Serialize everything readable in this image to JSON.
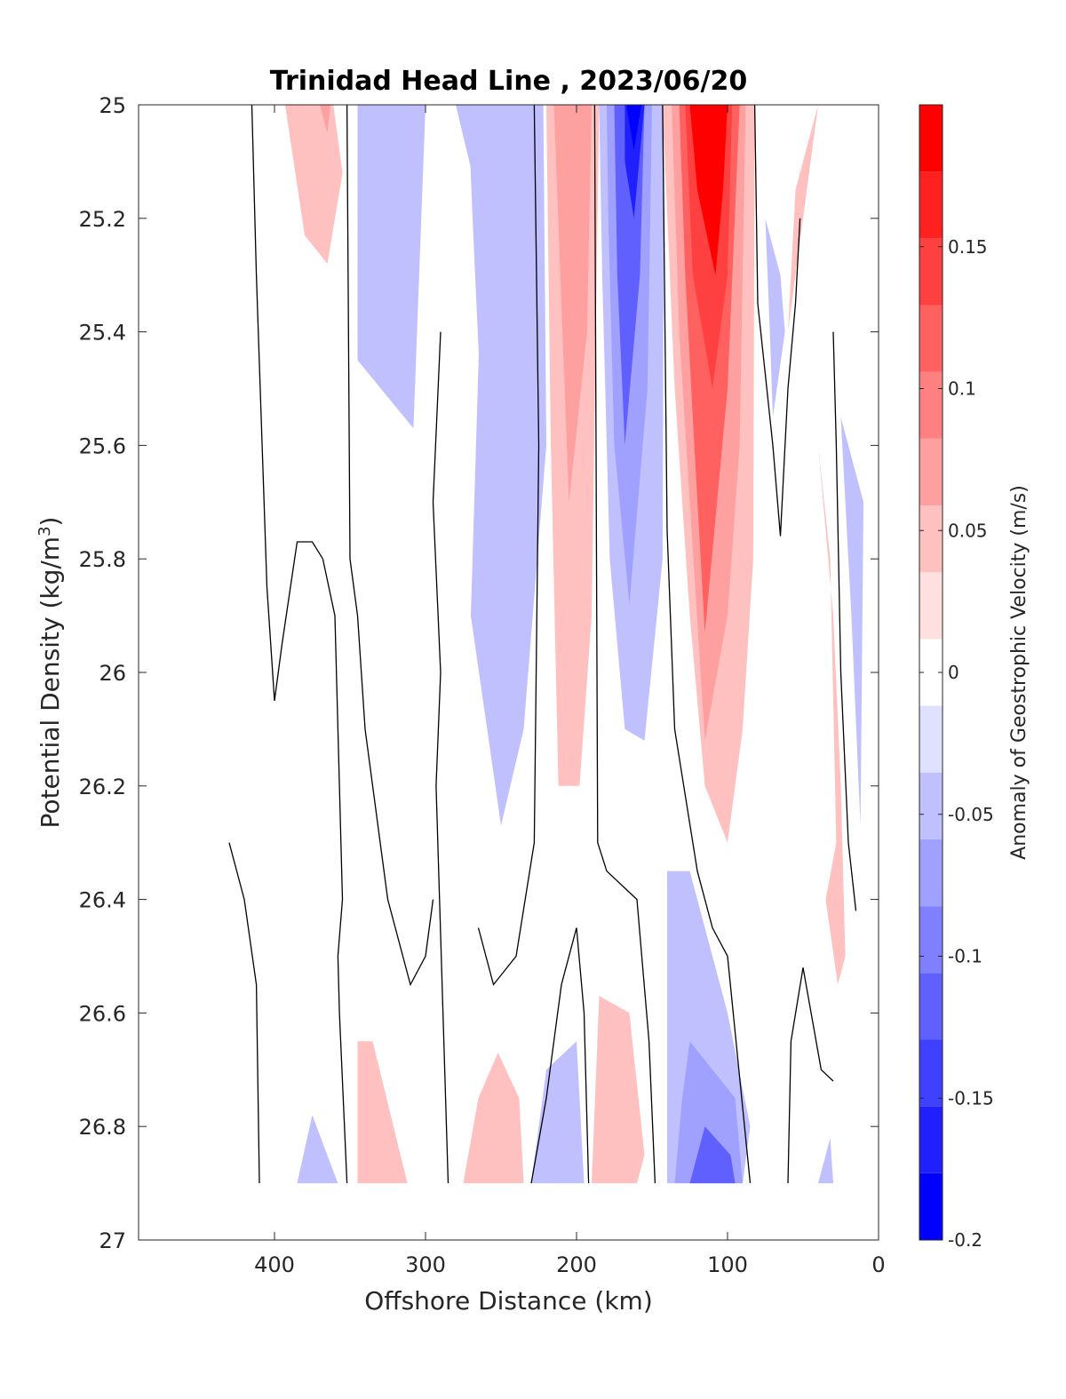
{
  "chart_data": {
    "type": "contour",
    "title": "Trinidad Head Line , 2023/06/20",
    "xlabel": "Offshore Distance (km)",
    "ylabel_main": "Potential Density (kg/m",
    "ylabel_sup": "3",
    "ylabel_tail": ")",
    "xlim": [
      490,
      0
    ],
    "x_reversed": true,
    "ylim": [
      25,
      27
    ],
    "y_reversed": true,
    "x_ticks": [
      400,
      300,
      200,
      100,
      0
    ],
    "x_tick_labels": [
      "400",
      "300",
      "200",
      "100",
      "0"
    ],
    "y_ticks": [
      25,
      25.2,
      25.4,
      25.6,
      25.8,
      26,
      26.2,
      26.4,
      26.6,
      26.8,
      27
    ],
    "y_tick_labels": [
      "25",
      "25.2",
      "25.4",
      "25.6",
      "25.8",
      "26",
      "26.2",
      "26.4",
      "26.6",
      "26.8",
      "27"
    ],
    "grid": false,
    "colorbar": {
      "label": "Anomaly of Geostrophic Velocity (m/s)",
      "range": [
        -0.2,
        0.2
      ],
      "levels": [
        -0.2,
        -0.175,
        -0.15,
        -0.125,
        -0.1,
        -0.075,
        -0.05,
        -0.025,
        0,
        0.025,
        0.05,
        0.075,
        0.1,
        0.125,
        0.15,
        0.175,
        0.2
      ],
      "colors": [
        "#0000ff",
        "#2020ff",
        "#4040ff",
        "#6060ff",
        "#8080ff",
        "#a0a0ff",
        "#c0c0ff",
        "#e0e0ff",
        "#ffffff",
        "#ffe0e0",
        "#ffc0c0",
        "#ffa0a0",
        "#ff8080",
        "#ff6060",
        "#ff4040",
        "#ff2020",
        "#ff0000"
      ],
      "ticks": [
        0.15,
        0.1,
        0.05,
        0,
        -0.05,
        -0.1,
        -0.15,
        -0.2
      ],
      "tick_labels": [
        "0.15",
        "0.1",
        "0.05",
        "0",
        "-0.05",
        "-0.1",
        "-0.15",
        "-0.2"
      ],
      "position": "right"
    },
    "filled_regions": [
      {
        "value": 0.03,
        "points": [
          [
            393,
            25
          ],
          [
            361,
            25
          ],
          [
            355,
            25.12
          ],
          [
            365,
            25.28
          ],
          [
            380,
            25.23
          ]
        ]
      },
      {
        "value": 0.05,
        "points": [
          [
            370,
            25
          ],
          [
            363,
            25
          ],
          [
            365,
            25.05
          ]
        ]
      },
      {
        "value": -0.03,
        "points": [
          [
            345,
            25
          ],
          [
            300,
            25
          ],
          [
            308,
            25.57
          ],
          [
            345,
            25.45
          ]
        ]
      },
      {
        "value": -0.05,
        "points": [
          [
            338,
            25
          ],
          [
            310,
            25
          ],
          [
            312,
            25.15
          ],
          [
            322,
            25.18
          ],
          [
            330,
            25.15
          ]
        ]
      },
      {
        "value": -0.03,
        "points": [
          [
            280,
            25
          ],
          [
            222,
            25
          ],
          [
            220,
            25.6
          ],
          [
            235,
            26.1
          ],
          [
            250,
            26.27
          ],
          [
            270,
            25.9
          ],
          [
            262,
            25.2
          ]
        ]
      },
      {
        "value": -0.05,
        "points": [
          [
            272,
            25
          ],
          [
            235,
            25
          ],
          [
            240,
            25.55
          ],
          [
            258,
            25.83
          ],
          [
            268,
            25.25
          ]
        ]
      },
      {
        "value": 0.03,
        "points": [
          [
            220,
            25
          ],
          [
            185,
            25
          ],
          [
            190,
            25.9
          ],
          [
            198,
            26.2
          ],
          [
            212,
            26.2
          ],
          [
            217,
            25.6
          ]
        ]
      },
      {
        "value": 0.07,
        "points": [
          [
            215,
            25
          ],
          [
            190,
            25
          ],
          [
            193,
            25.4
          ],
          [
            205,
            25.7
          ],
          [
            210,
            25.35
          ]
        ]
      },
      {
        "value": -0.03,
        "points": [
          [
            185,
            25
          ],
          [
            142,
            25
          ],
          [
            143,
            25.8
          ],
          [
            155,
            26.12
          ],
          [
            168,
            26.1
          ],
          [
            178,
            25.8
          ],
          [
            183,
            25.3
          ]
        ]
      },
      {
        "value": -0.07,
        "points": [
          [
            180,
            25
          ],
          [
            150,
            25
          ],
          [
            153,
            25.5
          ],
          [
            165,
            25.88
          ],
          [
            175,
            25.6
          ],
          [
            179,
            25.2
          ]
        ]
      },
      {
        "value": -0.11,
        "points": [
          [
            175,
            25
          ],
          [
            155,
            25
          ],
          [
            158,
            25.3
          ],
          [
            168,
            25.6
          ],
          [
            173,
            25.3
          ]
        ]
      },
      {
        "value": -0.16,
        "points": [
          [
            168,
            25
          ],
          [
            155,
            25
          ],
          [
            162,
            25.2
          ],
          [
            168,
            25.1
          ]
        ]
      },
      {
        "value": -0.19,
        "points": [
          [
            167,
            25
          ],
          [
            157,
            25
          ],
          [
            162,
            25.08
          ]
        ]
      },
      {
        "value": 0.03,
        "points": [
          [
            143,
            25
          ],
          [
            82,
            25
          ],
          [
            83,
            25.8
          ],
          [
            90,
            26.1
          ],
          [
            100,
            26.3
          ],
          [
            115,
            26.2
          ],
          [
            125,
            25.9
          ],
          [
            135,
            25.5
          ]
        ]
      },
      {
        "value": 0.07,
        "points": [
          [
            137,
            25
          ],
          [
            88,
            25
          ],
          [
            92,
            25.6
          ],
          [
            100,
            25.9
          ],
          [
            115,
            26.12
          ],
          [
            125,
            25.7
          ],
          [
            132,
            25.4
          ]
        ]
      },
      {
        "value": 0.11,
        "points": [
          [
            132,
            25
          ],
          [
            92,
            25
          ],
          [
            100,
            25.5
          ],
          [
            115,
            25.93
          ],
          [
            122,
            25.6
          ],
          [
            128,
            25.3
          ]
        ]
      },
      {
        "value": 0.14,
        "points": [
          [
            128,
            25
          ],
          [
            97,
            25
          ],
          [
            100,
            25.3
          ],
          [
            110,
            25.5
          ],
          [
            123,
            25.3
          ]
        ]
      },
      {
        "value": 0.18,
        "points": [
          [
            125,
            25
          ],
          [
            100,
            25
          ],
          [
            103,
            25.15
          ],
          [
            108,
            25.3
          ],
          [
            120,
            25.15
          ]
        ]
      },
      {
        "value": 0.03,
        "points": [
          [
            40,
            25
          ],
          [
            55,
            25.15
          ],
          [
            60,
            25.4
          ],
          [
            55,
            25.3
          ]
        ]
      },
      {
        "value": -0.03,
        "points": [
          [
            75,
            25.2
          ],
          [
            65,
            25.3
          ],
          [
            62,
            25.4
          ],
          [
            70,
            25.55
          ],
          [
            72,
            25.4
          ]
        ]
      },
      {
        "value": -0.03,
        "points": [
          [
            25,
            25.55
          ],
          [
            10,
            25.7
          ],
          [
            12,
            26.27
          ],
          [
            18,
            25.9
          ]
        ]
      },
      {
        "value": 0.03,
        "points": [
          [
            40,
            25.6
          ],
          [
            32,
            25.8
          ],
          [
            28,
            26.3
          ],
          [
            35,
            26.4
          ],
          [
            27,
            26.55
          ],
          [
            22,
            26.5
          ],
          [
            25,
            26.2
          ],
          [
            30,
            25.9
          ]
        ]
      },
      {
        "value": -0.03,
        "points": [
          [
            140,
            26.35
          ],
          [
            125,
            26.35
          ],
          [
            100,
            26.6
          ],
          [
            85,
            26.8
          ],
          [
            90,
            26.9
          ],
          [
            140,
            26.9
          ]
        ]
      },
      {
        "value": -0.07,
        "points": [
          [
            125,
            26.65
          ],
          [
            95,
            26.75
          ],
          [
            90,
            26.9
          ],
          [
            135,
            26.9
          ],
          [
            130,
            26.75
          ]
        ]
      },
      {
        "value": -0.11,
        "points": [
          [
            115,
            26.8
          ],
          [
            98,
            26.85
          ],
          [
            95,
            26.9
          ],
          [
            125,
            26.9
          ]
        ]
      },
      {
        "value": 0.03,
        "points": [
          [
            185,
            26.57
          ],
          [
            165,
            26.6
          ],
          [
            155,
            26.85
          ],
          [
            160,
            26.9
          ],
          [
            190,
            26.9
          ]
        ]
      },
      {
        "value": 0.05,
        "points": [
          [
            178,
            26.85
          ],
          [
            170,
            26.9
          ]
        ]
      },
      {
        "value": 0.03,
        "points": [
          [
            345,
            26.65
          ],
          [
            335,
            26.65
          ],
          [
            312,
            26.9
          ],
          [
            345,
            26.9
          ]
        ]
      },
      {
        "value": 0.03,
        "points": [
          [
            275,
            26.9
          ],
          [
            265,
            26.75
          ],
          [
            252,
            26.67
          ],
          [
            238,
            26.75
          ],
          [
            235,
            26.9
          ]
        ]
      },
      {
        "value": -0.03,
        "points": [
          [
            385,
            26.9
          ],
          [
            375,
            26.78
          ],
          [
            358,
            26.9
          ]
        ]
      },
      {
        "value": -0.03,
        "points": [
          [
            230,
            26.9
          ],
          [
            220,
            26.7
          ],
          [
            200,
            26.65
          ],
          [
            195,
            26.9
          ]
        ]
      },
      {
        "value": -0.05,
        "points": [
          [
            220,
            26.8
          ],
          [
            205,
            26.82
          ],
          [
            198,
            26.9
          ],
          [
            215,
            26.9
          ]
        ]
      },
      {
        "value": -0.03,
        "points": [
          [
            30,
            26.9
          ],
          [
            32,
            26.82
          ],
          [
            40,
            26.9
          ]
        ]
      }
    ],
    "zero_contours": [
      [
        [
          415,
          25
        ],
        [
          412,
          25.3
        ],
        [
          405,
          25.85
        ],
        [
          400,
          26.05
        ],
        [
          395,
          25.95
        ],
        [
          385,
          25.77
        ],
        [
          375,
          25.77
        ],
        [
          368,
          25.8
        ],
        [
          360,
          25.9
        ],
        [
          355,
          26.4
        ],
        [
          358,
          26.5
        ],
        [
          357,
          26.6
        ],
        [
          352,
          26.9
        ]
      ],
      [
        [
          352,
          25
        ],
        [
          350,
          25.8
        ],
        [
          345,
          25.9
        ],
        [
          340,
          26.1
        ],
        [
          325,
          26.4
        ],
        [
          310,
          26.55
        ],
        [
          300,
          26.5
        ],
        [
          295,
          26.4
        ]
      ],
      [
        [
          290,
          25.4
        ],
        [
          295,
          25.7
        ],
        [
          290,
          26
        ],
        [
          293,
          26.2
        ],
        [
          285,
          26.9
        ]
      ],
      [
        [
          228,
          25
        ],
        [
          225,
          25.6
        ],
        [
          228,
          26.3
        ],
        [
          240,
          26.5
        ],
        [
          255,
          26.55
        ],
        [
          265,
          26.45
        ]
      ],
      [
        [
          188,
          25
        ],
        [
          186,
          26.3
        ],
        [
          180,
          26.35
        ],
        [
          160,
          26.4
        ],
        [
          152,
          26.65
        ],
        [
          148,
          26.9
        ]
      ],
      [
        [
          143,
          25
        ],
        [
          140,
          25.75
        ],
        [
          135,
          26.1
        ],
        [
          120,
          26.35
        ],
        [
          110,
          26.45
        ],
        [
          100,
          26.5
        ],
        [
          85,
          26.9
        ]
      ],
      [
        [
          82,
          25
        ],
        [
          80,
          25.35
        ],
        [
          70,
          25.6
        ],
        [
          65,
          25.76
        ],
        [
          60,
          25.5
        ],
        [
          55,
          25.35
        ],
        [
          52,
          25.2
        ]
      ],
      [
        [
          30,
          25.4
        ],
        [
          28,
          25.6
        ],
        [
          25,
          26
        ],
        [
          20,
          26.3
        ],
        [
          15,
          26.42
        ]
      ],
      [
        [
          60,
          26.9
        ],
        [
          58,
          26.65
        ],
        [
          50,
          26.52
        ],
        [
          38,
          26.7
        ],
        [
          30,
          26.72
        ]
      ],
      [
        [
          430,
          26.3
        ],
        [
          420,
          26.4
        ],
        [
          412,
          26.55
        ],
        [
          410,
          26.9
        ]
      ],
      [
        [
          230,
          26.9
        ],
        [
          220,
          26.75
        ],
        [
          210,
          26.55
        ],
        [
          200,
          26.45
        ],
        [
          195,
          26.6
        ],
        [
          192,
          26.9
        ]
      ]
    ]
  }
}
